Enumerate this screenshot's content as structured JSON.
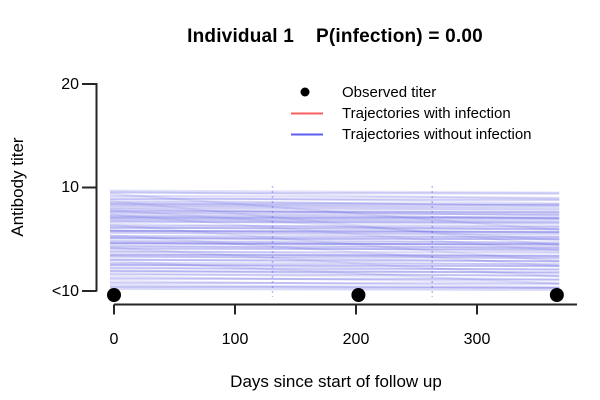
{
  "chart_data": {
    "type": "line",
    "title": "Individual 1    P(infection) = 0.00",
    "xlabel": "Days since start of follow up",
    "ylabel": "Antibody titer",
    "xlim": [
      0,
      370
    ],
    "x_ticks": [
      {
        "day": 0,
        "label": "0"
      },
      {
        "day": 100,
        "label": "100"
      },
      {
        "day": 200,
        "label": "200"
      },
      {
        "day": 300,
        "label": "300"
      }
    ],
    "y_ticks": [
      {
        "label": "20"
      },
      {
        "label": "10"
      },
      {
        "label": "<10"
      }
    ],
    "grid": false,
    "legend": {
      "position": "top-right",
      "items": [
        {
          "label": "Observed titer",
          "marker": "point",
          "color": "#000000"
        },
        {
          "label": "Trajectories with infection",
          "marker": "line",
          "color": "#f94c4c"
        },
        {
          "label": "Trajectories without infection",
          "marker": "line",
          "color": "#4d4df0"
        }
      ]
    },
    "observed_points": [
      {
        "day": 0,
        "titer": "<10"
      },
      {
        "day": 202,
        "titer": "<10"
      },
      {
        "day": 366,
        "titer": "<10"
      }
    ],
    "vertical_guides_days": [
      131,
      263
    ],
    "guide_color": "#6e6ee8",
    "axis_color": "#262626",
    "point_color": "#000000",
    "trajectory_color_without_infection": "#3c3cdc",
    "trajectory_color_with_infection": "#e84343",
    "trajectory_day_range": [
      0,
      368
    ],
    "trajectory_titer_scale": "0 = <10 level, 1 = titer 10 level; entries are [start,end,opacity]",
    "trajectories_with_infection": [],
    "trajectories_without_infection": [
      [
        0.98,
        0.96,
        0.15
      ],
      [
        0.97,
        0.9,
        0.1
      ],
      [
        0.96,
        0.95,
        0.22
      ],
      [
        0.95,
        0.6,
        0.12
      ],
      [
        0.93,
        0.91,
        0.18
      ],
      [
        0.92,
        0.86,
        0.1
      ],
      [
        0.9,
        0.89,
        0.25
      ],
      [
        0.89,
        0.83,
        0.12
      ],
      [
        0.88,
        0.45,
        0.1
      ],
      [
        0.87,
        0.85,
        0.2
      ],
      [
        0.86,
        0.8,
        0.1
      ],
      [
        0.85,
        0.84,
        0.28
      ],
      [
        0.84,
        0.78,
        0.12
      ],
      [
        0.83,
        0.82,
        0.18
      ],
      [
        0.82,
        0.76,
        0.1
      ],
      [
        0.81,
        0.8,
        0.15
      ],
      [
        0.8,
        0.74,
        0.22
      ],
      [
        0.79,
        0.5,
        0.1
      ],
      [
        0.78,
        0.77,
        0.3
      ],
      [
        0.77,
        0.71,
        0.12
      ],
      [
        0.76,
        0.75,
        0.18
      ],
      [
        0.75,
        0.4,
        0.09
      ],
      [
        0.74,
        0.72,
        0.25
      ],
      [
        0.73,
        0.67,
        0.1
      ],
      [
        0.72,
        0.71,
        0.35
      ],
      [
        0.71,
        0.65,
        0.12
      ],
      [
        0.7,
        0.69,
        0.2
      ],
      [
        0.69,
        0.63,
        0.1
      ],
      [
        0.68,
        0.67,
        0.28
      ],
      [
        0.66,
        0.6,
        0.12
      ],
      [
        0.65,
        0.3,
        0.1
      ],
      [
        0.64,
        0.63,
        0.22
      ],
      [
        0.63,
        0.57,
        0.1
      ],
      [
        0.62,
        0.61,
        0.3
      ],
      [
        0.6,
        0.54,
        0.12
      ],
      [
        0.59,
        0.58,
        0.4
      ],
      [
        0.58,
        0.52,
        0.1
      ],
      [
        0.57,
        0.56,
        0.18
      ],
      [
        0.55,
        0.25,
        0.1
      ],
      [
        0.54,
        0.53,
        0.25
      ],
      [
        0.53,
        0.47,
        0.12
      ],
      [
        0.52,
        0.51,
        0.35
      ],
      [
        0.5,
        0.44,
        0.1
      ],
      [
        0.49,
        0.48,
        0.2
      ],
      [
        0.48,
        0.42,
        0.12
      ],
      [
        0.47,
        0.46,
        0.42
      ],
      [
        0.45,
        0.39,
        0.1
      ],
      [
        0.44,
        0.43,
        0.25
      ],
      [
        0.43,
        0.15,
        0.1
      ],
      [
        0.42,
        0.41,
        0.3
      ],
      [
        0.4,
        0.34,
        0.12
      ],
      [
        0.39,
        0.38,
        0.2
      ],
      [
        0.38,
        0.32,
        0.1
      ],
      [
        0.36,
        0.35,
        0.35
      ],
      [
        0.35,
        0.29,
        0.12
      ],
      [
        0.34,
        0.33,
        0.22
      ],
      [
        0.32,
        0.26,
        0.1
      ],
      [
        0.31,
        0.3,
        0.28
      ],
      [
        0.3,
        0.08,
        0.1
      ],
      [
        0.28,
        0.27,
        0.2
      ],
      [
        0.27,
        0.21,
        0.12
      ],
      [
        0.26,
        0.25,
        0.32
      ],
      [
        0.24,
        0.18,
        0.1
      ],
      [
        0.23,
        0.22,
        0.25
      ],
      [
        0.21,
        0.15,
        0.12
      ],
      [
        0.2,
        0.19,
        0.3
      ],
      [
        0.18,
        0.12,
        0.1
      ],
      [
        0.17,
        0.16,
        0.22
      ],
      [
        0.15,
        0.09,
        0.12
      ],
      [
        0.13,
        0.12,
        0.28
      ],
      [
        0.11,
        0.05,
        0.1
      ],
      [
        0.09,
        0.08,
        0.25
      ],
      [
        0.07,
        0.04,
        0.15
      ],
      [
        0.05,
        0.04,
        0.3
      ],
      [
        0.03,
        0.02,
        0.2
      ]
    ]
  }
}
